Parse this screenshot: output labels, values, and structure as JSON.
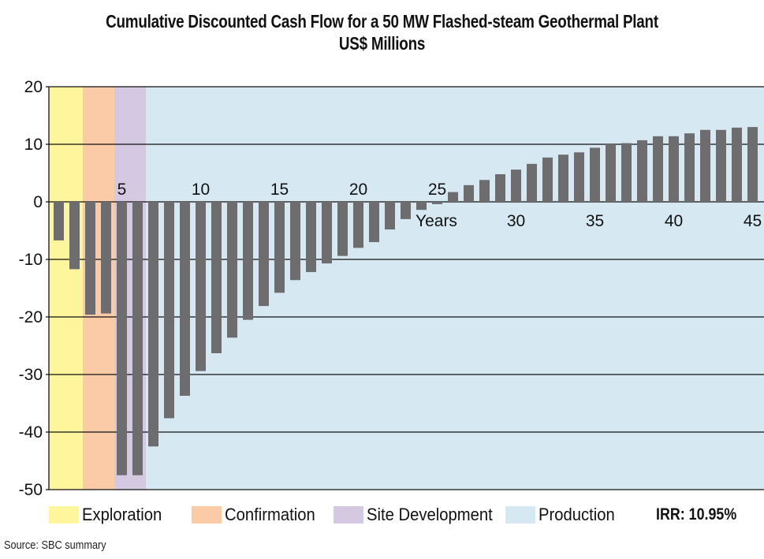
{
  "chart_data": {
    "type": "bar",
    "title": "Cumulative Discounted Cash Flow for a 50 MW Flashed-steam Geothermal Plant",
    "subtitle": "US$ Millions",
    "xlabel": "Years",
    "ylabel": "",
    "ylim": [
      -50,
      20
    ],
    "yticks": [
      20,
      10,
      0,
      -10,
      -20,
      -30,
      -40,
      -50
    ],
    "ytick_labels": [
      "20",
      "10",
      "0",
      "-10",
      "-20",
      "-30",
      "-40",
      "-50"
    ],
    "xticks": [
      5,
      10,
      15,
      20,
      25,
      30,
      35,
      40,
      45
    ],
    "xtick_labels": [
      "5",
      "10",
      "15",
      "20",
      "25",
      "30",
      "35",
      "40",
      "45"
    ],
    "grid": "horizontal",
    "x": [
      1,
      2,
      3,
      4,
      5,
      6,
      7,
      8,
      9,
      10,
      11,
      12,
      13,
      14,
      15,
      16,
      17,
      18,
      19,
      20,
      21,
      22,
      23,
      24,
      25,
      26,
      27,
      28,
      29,
      30,
      31,
      32,
      33,
      34,
      35,
      36,
      37,
      38,
      39,
      40,
      41,
      42,
      43,
      44,
      45
    ],
    "values": [
      -6.7,
      -11.7,
      -19.6,
      -19.4,
      -47.5,
      -47.5,
      -42.5,
      -37.6,
      -33.7,
      -29.4,
      -26.3,
      -23.6,
      -20.5,
      -18.1,
      -15.8,
      -13.6,
      -12.2,
      -10.7,
      -9.4,
      -8.0,
      -7.0,
      -4.8,
      -3.0,
      -1.4,
      -0.4,
      1.7,
      2.9,
      3.8,
      4.8,
      5.6,
      6.6,
      7.7,
      8.2,
      8.6,
      9.4,
      10.0,
      10.2,
      10.7,
      11.4,
      11.4,
      11.9,
      12.5,
      12.5,
      12.9,
      13.0
    ],
    "bar_color": "#6d6d6f",
    "phases": [
      {
        "name": "Exploration",
        "start_year": 1,
        "end_year": 2,
        "color": "#fff59d"
      },
      {
        "name": "Confirmation",
        "start_year": 3,
        "end_year": 4,
        "color": "#fbcba8"
      },
      {
        "name": "Site Development",
        "start_year": 5,
        "end_year": 6,
        "color": "#d5c9e1"
      },
      {
        "name": "Production",
        "start_year": 7,
        "end_year": 45,
        "color": "#d6e8f2"
      }
    ],
    "legend": [
      "Exploration",
      "Confirmation",
      "Site Development",
      "Production"
    ],
    "legend_position": "bottom",
    "annotations": [
      "IRR: 10.95%"
    ],
    "source": "Source: SBC summary"
  },
  "header": {
    "title_line1": "Cumulative Discounted Cash Flow for a 50 MW Flashed-steam Geothermal Plant",
    "title_line2": "US$ Millions"
  },
  "legend": {
    "items": [
      {
        "label": "Exploration",
        "color": "#fff59d"
      },
      {
        "label": "Confirmation",
        "color": "#fbcba8"
      },
      {
        "label": "Site Development",
        "color": "#d5c9e1"
      },
      {
        "label": "Production",
        "color": "#d6e8f2"
      }
    ],
    "irr": "IRR: 10.95%"
  },
  "footer": {
    "source": "Source: SBC summary"
  }
}
